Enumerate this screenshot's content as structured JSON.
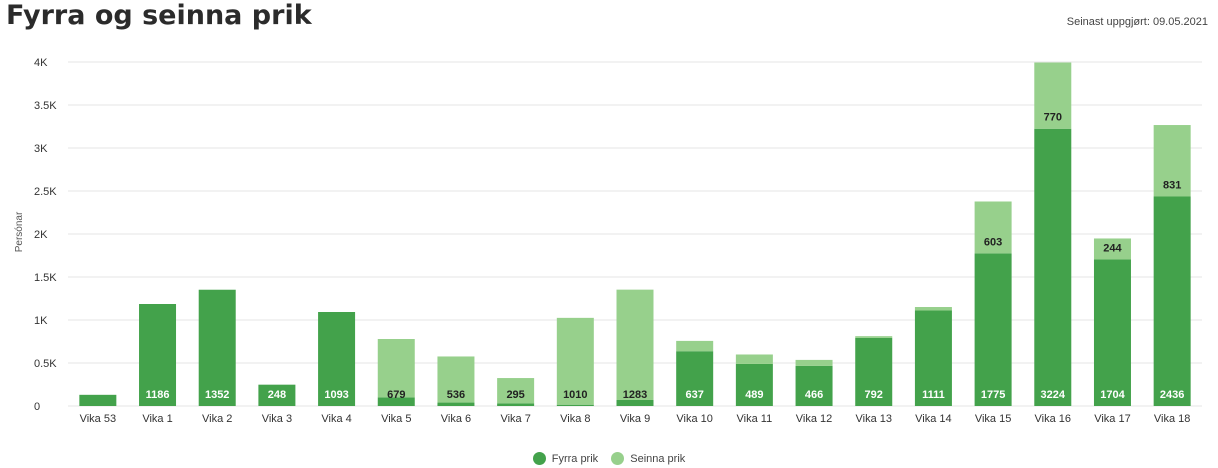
{
  "header": {
    "title": "Fyrra og seinna prik",
    "updated": "Seinast uppgjørt: 09.05.2021"
  },
  "colors": {
    "first": "#43a24b",
    "second": "#97d08c",
    "grid": "#e6e6e6"
  },
  "chart_data": {
    "type": "bar",
    "stacked": true,
    "title": "Fyrra og seinna prik",
    "xlabel": "",
    "ylabel": "Persónar",
    "ylim": [
      0,
      4000
    ],
    "yticks": [
      0,
      500,
      1000,
      1500,
      2000,
      2500,
      3000,
      3500,
      4000
    ],
    "ytick_labels": [
      "0",
      "0.5K",
      "1K",
      "1.5K",
      "2K",
      "2.5K",
      "3K",
      "3.5K",
      "4K"
    ],
    "categories": [
      "Vika 53",
      "Vika 1",
      "Vika 2",
      "Vika 3",
      "Vika 4",
      "Vika 5",
      "Vika 6",
      "Vika 7",
      "Vika 8",
      "Vika 9",
      "Vika 10",
      "Vika 11",
      "Vika 12",
      "Vika 13",
      "Vika 14",
      "Vika 15",
      "Vika 16",
      "Vika 17",
      "Vika 18"
    ],
    "series": [
      {
        "name": "Fyrra prik",
        "values": [
          130,
          1186,
          1352,
          248,
          1093,
          100,
          40,
          30,
          15,
          70,
          637,
          489,
          466,
          792,
          1111,
          1775,
          3224,
          1704,
          2436
        ],
        "labels": [
          "",
          "1186",
          "1352",
          "248",
          "1093",
          "",
          "",
          "",
          "",
          "",
          "637",
          "489",
          "466",
          "792",
          "1111",
          "1775",
          "3224",
          "1704",
          "2436"
        ]
      },
      {
        "name": "Seinna prik",
        "values": [
          0,
          0,
          0,
          0,
          0,
          679,
          536,
          295,
          1010,
          1283,
          120,
          110,
          70,
          20,
          40,
          603,
          770,
          244,
          831
        ],
        "labels": [
          "",
          "",
          "",
          "",
          "",
          "679",
          "536",
          "295",
          "1010",
          "1283",
          "",
          "",
          "",
          "",
          "",
          "603",
          "770",
          "244",
          "831"
        ]
      }
    ],
    "legend_position": "bottom",
    "grid": true
  }
}
